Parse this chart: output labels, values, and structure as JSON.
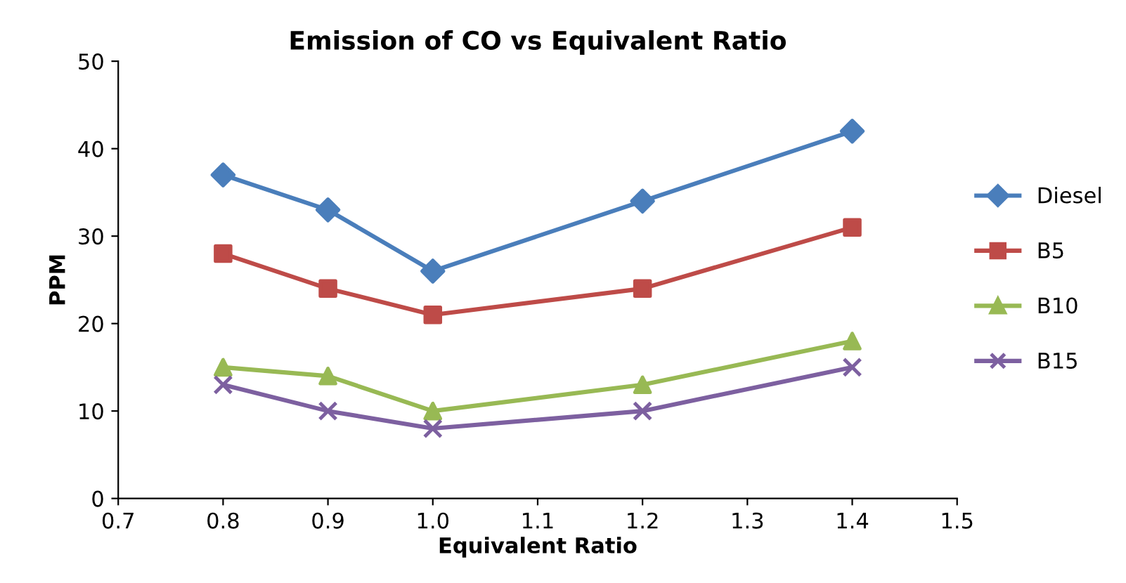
{
  "chart_data": {
    "type": "line",
    "title": "Emission of CO vs Equivalent Ratio",
    "xlabel": "Equivalent Ratio",
    "ylabel": "PPM",
    "x": [
      0.8,
      0.9,
      1.0,
      1.2,
      1.4
    ],
    "series": [
      {
        "name": "Diesel",
        "color": "#4a7ebb",
        "marker": "diamond",
        "values": [
          37,
          33,
          26,
          34,
          42
        ]
      },
      {
        "name": "B5",
        "color": "#be4b48",
        "marker": "square",
        "values": [
          28,
          24,
          21,
          24,
          31
        ]
      },
      {
        "name": "B10",
        "color": "#98b954",
        "marker": "triangle",
        "values": [
          15,
          14,
          10,
          13,
          18
        ]
      },
      {
        "name": "B15",
        "color": "#7d60a0",
        "marker": "cross",
        "values": [
          13,
          10,
          8,
          10,
          15
        ]
      }
    ],
    "xlim": [
      0.7,
      1.5
    ],
    "xticks": [
      0.7,
      0.8,
      0.9,
      {
        "value": 1.0,
        "label": "1.0"
      },
      1.1,
      1.2,
      1.3,
      1.4,
      {
        "value": 1.5,
        "label": "1.5"
      }
    ],
    "ylim": [
      0,
      50
    ],
    "yticks": [
      0,
      10,
      20,
      30,
      40,
      50
    ],
    "grid": false,
    "legend": "right",
    "line_style": "solid"
  }
}
